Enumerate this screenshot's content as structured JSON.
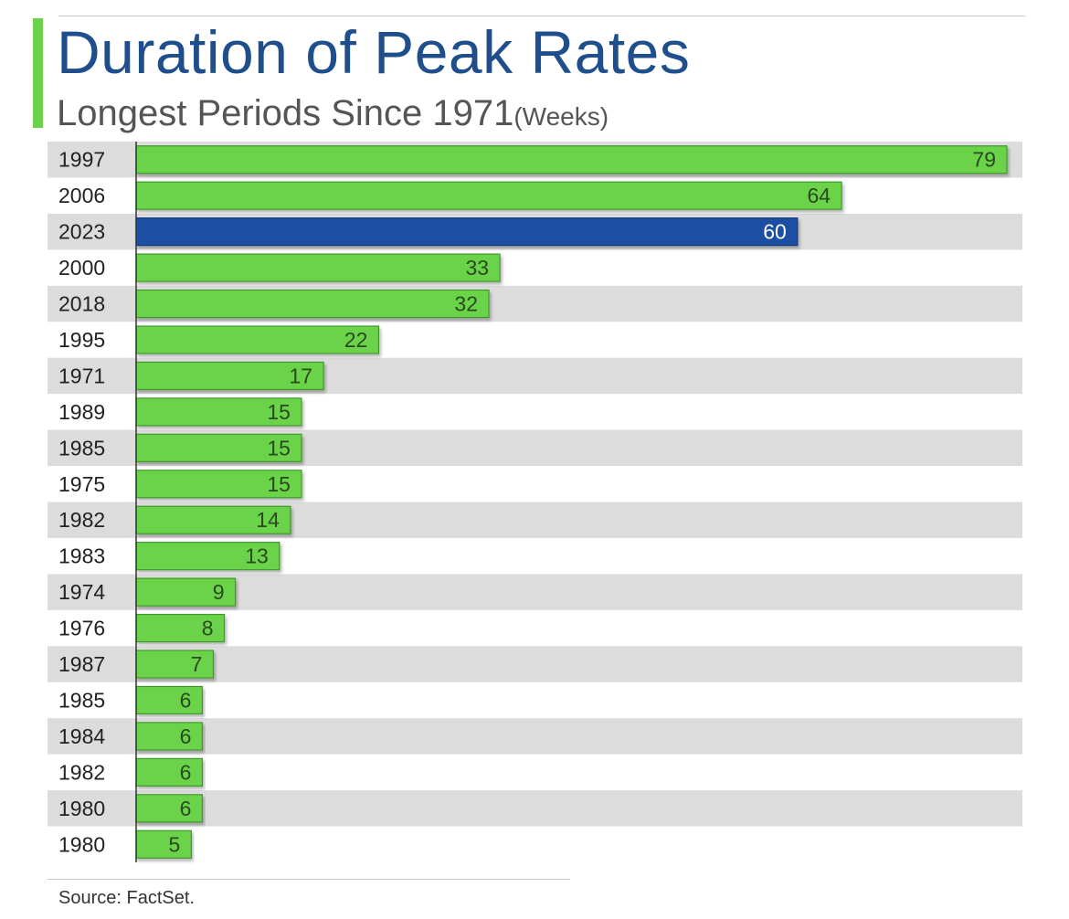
{
  "header": {
    "title": "Duration of Peak Rates",
    "subtitle": "Longest Periods Since 1971",
    "subtitle_unit": "(Weeks)"
  },
  "footer": {
    "source": "Source: FactSet."
  },
  "colors": {
    "bar": "#6ad34a",
    "bar_border": "#3f9a2c",
    "highlight": "#1f4fa3",
    "highlight_border": "#143a7c",
    "stripe": "#dcdcdc",
    "title": "#1f4e8c",
    "accent": "#6ad34a"
  },
  "chart_data": {
    "type": "bar",
    "orientation": "horizontal",
    "title": "Duration of Peak Rates",
    "subtitle": "Longest Periods Since 1971",
    "unit": "(Weeks)",
    "categories": [
      "1997",
      "2006",
      "2023",
      "2000",
      "2018",
      "1995",
      "1971",
      "1989",
      "1985",
      "1975",
      "1982",
      "1983",
      "1974",
      "1976",
      "1987",
      "1985",
      "1984",
      "1982",
      "1980",
      "1980"
    ],
    "values": [
      79,
      64,
      60,
      33,
      32,
      22,
      17,
      15,
      15,
      15,
      14,
      13,
      9,
      8,
      7,
      6,
      6,
      6,
      6,
      5
    ],
    "highlight_category": "2023",
    "xlim": [
      0,
      80
    ],
    "grid": false,
    "legend": "none"
  }
}
